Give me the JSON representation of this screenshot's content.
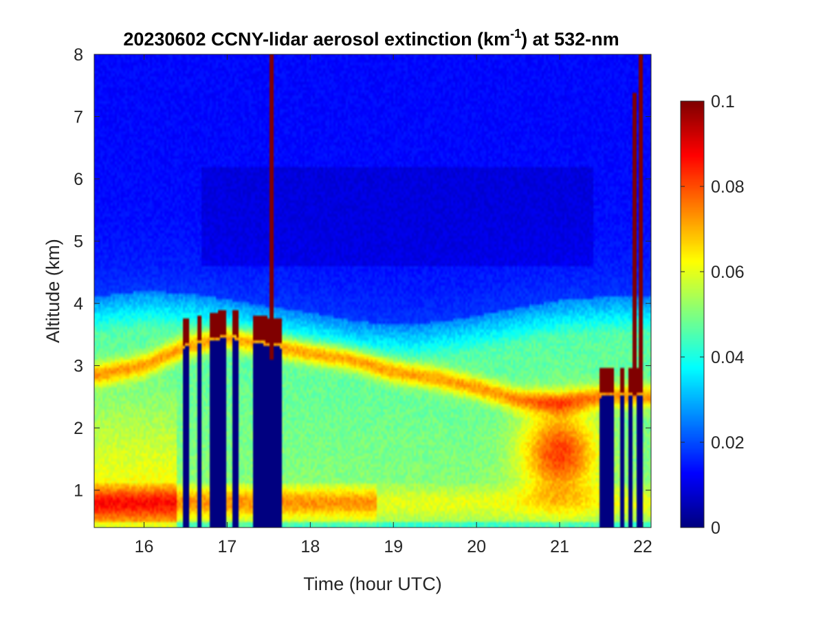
{
  "chart_data": {
    "type": "heatmap",
    "title": {
      "main": "20230602 CCNY-lidar aerosol extinction (km",
      "superscript": "-1",
      "tail": ") at 532-nm"
    },
    "xlabel": "Time (hour UTC)",
    "ylabel": "Altitude (km)",
    "xlim": [
      15.4,
      22.1
    ],
    "ylim": [
      0.4,
      8
    ],
    "xticks": [
      "16",
      "17",
      "18",
      "19",
      "20",
      "21",
      "22"
    ],
    "yticks": [
      "1",
      "2",
      "3",
      "4",
      "5",
      "6",
      "7",
      "8"
    ],
    "colormap": "jet",
    "colorbar": {
      "clim": [
        0,
        0.1
      ],
      "ticks": [
        "0",
        "0.02",
        "0.04",
        "0.06",
        "0.08",
        "0.1"
      ]
    },
    "features": {
      "cloud_blocked_columns": [
        {
          "from": 16.47,
          "to": 16.53
        },
        {
          "from": 16.63,
          "to": 16.7
        },
        {
          "from": 16.8,
          "to": 17.0
        },
        {
          "from": 17.07,
          "to": 17.13
        },
        {
          "from": 17.3,
          "to": 17.65
        },
        {
          "from": 21.47,
          "to": 21.65
        },
        {
          "from": 21.72,
          "to": 21.77
        },
        {
          "from": 21.83,
          "to": 21.87
        },
        {
          "from": 21.92,
          "to": 22.0
        }
      ],
      "cloud_top_columns": [
        {
          "from": 17.5,
          "to": 17.57,
          "bottom": 3.1,
          "top": 8.0
        },
        {
          "from": 21.88,
          "to": 21.93,
          "bottom": 2.5,
          "top": 7.4
        },
        {
          "from": 21.95,
          "to": 22.0,
          "bottom": 2.6,
          "top": 8.0
        }
      ],
      "aerosol_layer_top": [
        {
          "t": 15.4,
          "h": 4.1
        },
        {
          "t": 16.0,
          "h": 4.2
        },
        {
          "t": 16.6,
          "h": 4.15
        },
        {
          "t": 17.5,
          "h": 3.95
        },
        {
          "t": 18.0,
          "h": 3.85
        },
        {
          "t": 18.6,
          "h": 3.7
        },
        {
          "t": 19.2,
          "h": 3.65
        },
        {
          "t": 19.8,
          "h": 3.75
        },
        {
          "t": 20.4,
          "h": 3.9
        },
        {
          "t": 21.0,
          "h": 4.05
        },
        {
          "t": 21.5,
          "h": 4.1
        },
        {
          "t": 22.1,
          "h": 4.1
        }
      ],
      "peak_layer_height": [
        {
          "t": 15.4,
          "h": 2.85
        },
        {
          "t": 16.0,
          "h": 3.0
        },
        {
          "t": 16.5,
          "h": 3.3
        },
        {
          "t": 17.0,
          "h": 3.45
        },
        {
          "t": 17.6,
          "h": 3.3
        },
        {
          "t": 18.0,
          "h": 3.2
        },
        {
          "t": 18.5,
          "h": 3.1
        },
        {
          "t": 19.0,
          "h": 2.9
        },
        {
          "t": 19.5,
          "h": 2.8
        },
        {
          "t": 20.0,
          "h": 2.65
        },
        {
          "t": 20.5,
          "h": 2.45
        },
        {
          "t": 21.0,
          "h": 2.4
        },
        {
          "t": 21.5,
          "h": 2.5
        },
        {
          "t": 22.1,
          "h": 2.5
        }
      ]
    }
  }
}
